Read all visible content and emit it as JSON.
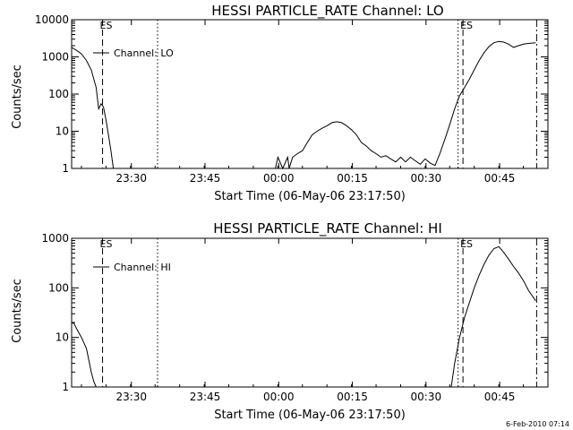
{
  "footer": {
    "timestamp": "6-Feb-2010 07:14"
  },
  "chart_data": [
    {
      "type": "line",
      "title": "HESSI PARTICLE_RATE Channel: LO",
      "xlabel": "Start Time (06-May-06 23:17:50)",
      "ylabel": "Counts/sec",
      "yscale": "log",
      "ylim": [
        1,
        10000
      ],
      "xlim_minutes": [
        0,
        97
      ],
      "xticks": [
        {
          "minute": 12.17,
          "label": "23:30"
        },
        {
          "minute": 27.17,
          "label": "23:45"
        },
        {
          "minute": 42.17,
          "label": "00:00"
        },
        {
          "minute": 57.17,
          "label": "00:15"
        },
        {
          "minute": 72.17,
          "label": "00:30"
        },
        {
          "minute": 87.17,
          "label": "00:45"
        }
      ],
      "yticks": [
        {
          "value": 1,
          "label": "1"
        },
        {
          "value": 10,
          "label": "10"
        },
        {
          "value": 100,
          "label": "100"
        },
        {
          "value": 1000,
          "label": "1000"
        },
        {
          "value": 10000,
          "label": "10000"
        }
      ],
      "legend": {
        "label": "Channel: LO",
        "placement": "top-left"
      },
      "markers": [
        {
          "minute": 6.3,
          "style": "dashed",
          "label": "ES"
        },
        {
          "minute": 17.5,
          "style": "dotted",
          "label": ""
        },
        {
          "minute": 78.7,
          "style": "dotted",
          "label": ""
        },
        {
          "minute": 79.7,
          "style": "dashed",
          "label": "ES"
        },
        {
          "minute": 94.7,
          "style": "dashdot",
          "label": ""
        }
      ],
      "series": [
        {
          "name": "Channel: LO",
          "x": [
            0,
            1,
            2,
            3,
            4,
            5,
            5.5,
            6,
            6.5,
            7,
            7.5,
            8,
            8.5
          ],
          "y": [
            1800,
            1500,
            1200,
            800,
            450,
            150,
            40,
            55,
            45,
            20,
            8,
            3,
            1
          ]
        },
        {
          "name": "Channel: LO",
          "x": [
            41.5,
            42,
            43,
            44,
            44.3,
            44.7,
            45,
            46,
            47,
            48,
            49,
            50,
            51,
            52,
            53,
            54,
            55,
            56,
            57,
            58,
            59,
            60,
            61,
            62,
            63,
            64,
            65,
            66,
            67,
            68,
            69,
            70,
            71,
            72,
            73,
            74,
            75,
            76,
            77,
            78,
            79,
            80,
            81,
            82,
            83,
            84,
            85,
            86,
            87,
            88,
            89,
            90,
            91,
            92,
            93,
            94.5
          ],
          "y": [
            1,
            2,
            1,
            2,
            1,
            1.5,
            2,
            2.5,
            3,
            5,
            8,
            10,
            12,
            14,
            17,
            18,
            17,
            14,
            11,
            8,
            5,
            4,
            3,
            2.5,
            2,
            2.2,
            1.8,
            1.5,
            2,
            1.5,
            2,
            1.6,
            1.3,
            1.8,
            1.4,
            1.2,
            2.5,
            6,
            15,
            40,
            90,
            150,
            250,
            450,
            800,
            1300,
            1900,
            2400,
            2600,
            2500,
            2200,
            1800,
            2000,
            2200,
            2300,
            2400
          ]
        }
      ]
    },
    {
      "type": "line",
      "title": "HESSI PARTICLE_RATE Channel: HI",
      "xlabel": "Start Time (06-May-06 23:17:50)",
      "ylabel": "Counts/sec",
      "yscale": "log",
      "ylim": [
        1,
        1000
      ],
      "xlim_minutes": [
        0,
        97
      ],
      "xticks": [
        {
          "minute": 12.17,
          "label": "23:30"
        },
        {
          "minute": 27.17,
          "label": "23:45"
        },
        {
          "minute": 42.17,
          "label": "00:00"
        },
        {
          "minute": 57.17,
          "label": "00:15"
        },
        {
          "minute": 72.17,
          "label": "00:30"
        },
        {
          "minute": 87.17,
          "label": "00:45"
        }
      ],
      "yticks": [
        {
          "value": 1,
          "label": "1"
        },
        {
          "value": 10,
          "label": "10"
        },
        {
          "value": 100,
          "label": "100"
        },
        {
          "value": 1000,
          "label": "1000"
        }
      ],
      "legend": {
        "label": "Channel: HI",
        "placement": "top-left"
      },
      "markers": [
        {
          "minute": 6.3,
          "style": "dashed",
          "label": "ES"
        },
        {
          "minute": 17.5,
          "style": "dotted",
          "label": ""
        },
        {
          "minute": 78.7,
          "style": "dotted",
          "label": ""
        },
        {
          "minute": 79.7,
          "style": "dashed",
          "label": "ES"
        },
        {
          "minute": 94.7,
          "style": "dashdot",
          "label": ""
        }
      ],
      "series": [
        {
          "name": "Channel: HI",
          "x": [
            0,
            0.5,
            1,
            2,
            3,
            3.5,
            4,
            4.5,
            5
          ],
          "y": [
            20,
            19,
            15,
            10,
            6,
            3.5,
            2,
            1.3,
            1
          ]
        },
        {
          "name": "Channel: HI",
          "x": [
            77.3,
            78,
            79,
            80,
            81,
            82,
            83,
            84,
            85,
            86,
            87,
            88,
            89,
            90,
            91,
            92,
            93,
            94,
            94.5
          ],
          "y": [
            1,
            3,
            10,
            25,
            50,
            100,
            180,
            300,
            460,
            620,
            680,
            520,
            380,
            270,
            200,
            140,
            90,
            65,
            55
          ]
        }
      ]
    }
  ]
}
